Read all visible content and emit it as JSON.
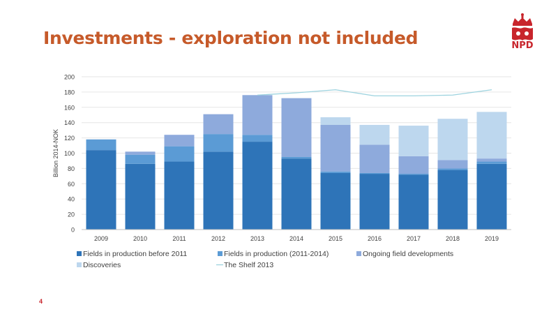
{
  "title": "Investments - exploration not included",
  "logo": {
    "text": "NPD"
  },
  "page_number": "4",
  "colors": {
    "title": "#c65a2a",
    "logo": "#c8252c",
    "grid": "#e6e6e6",
    "axis": "#bfbfbf",
    "tick_text": "#404040"
  },
  "chart_data": {
    "type": "bar",
    "stacked": true,
    "categories": [
      "2009",
      "2010",
      "2011",
      "2012",
      "2013",
      "2014",
      "2015",
      "2016",
      "2017",
      "2018",
      "2019"
    ],
    "ylabel": "Billion 2014-NOK",
    "xlabel": "",
    "ylim": [
      0,
      200
    ],
    "yticks": [
      0,
      20,
      40,
      60,
      80,
      100,
      120,
      140,
      160,
      180,
      200
    ],
    "grid": true,
    "legend_position": "bottom",
    "series": [
      {
        "name": "Fields in production before 2011",
        "color": "#2e74b8",
        "values": [
          104,
          86,
          89,
          102,
          115,
          93,
          74,
          73,
          72,
          78,
          86
        ]
      },
      {
        "name": "Fields in production (2011-2014)",
        "color": "#5b9bd5",
        "values": [
          14,
          12,
          20,
          23,
          9,
          2,
          2,
          1,
          1,
          2,
          3
        ]
      },
      {
        "name": "Ongoing field developments",
        "color": "#8eaadc",
        "values": [
          0,
          4,
          15,
          26,
          52,
          77,
          61,
          37,
          23,
          11,
          4
        ]
      },
      {
        "name": "Discoveries",
        "color": "#bdd7ee",
        "values": [
          0,
          0,
          0,
          0,
          0,
          0,
          10,
          26,
          40,
          54,
          61
        ]
      }
    ],
    "line_series": {
      "name": "The Shelf  2013",
      "color": "#9dd3df",
      "x": [
        "2013",
        "2014",
        "2015",
        "2016",
        "2017",
        "2018",
        "2019"
      ],
      "values": [
        176,
        179,
        183,
        175,
        175,
        176,
        183
      ]
    }
  }
}
